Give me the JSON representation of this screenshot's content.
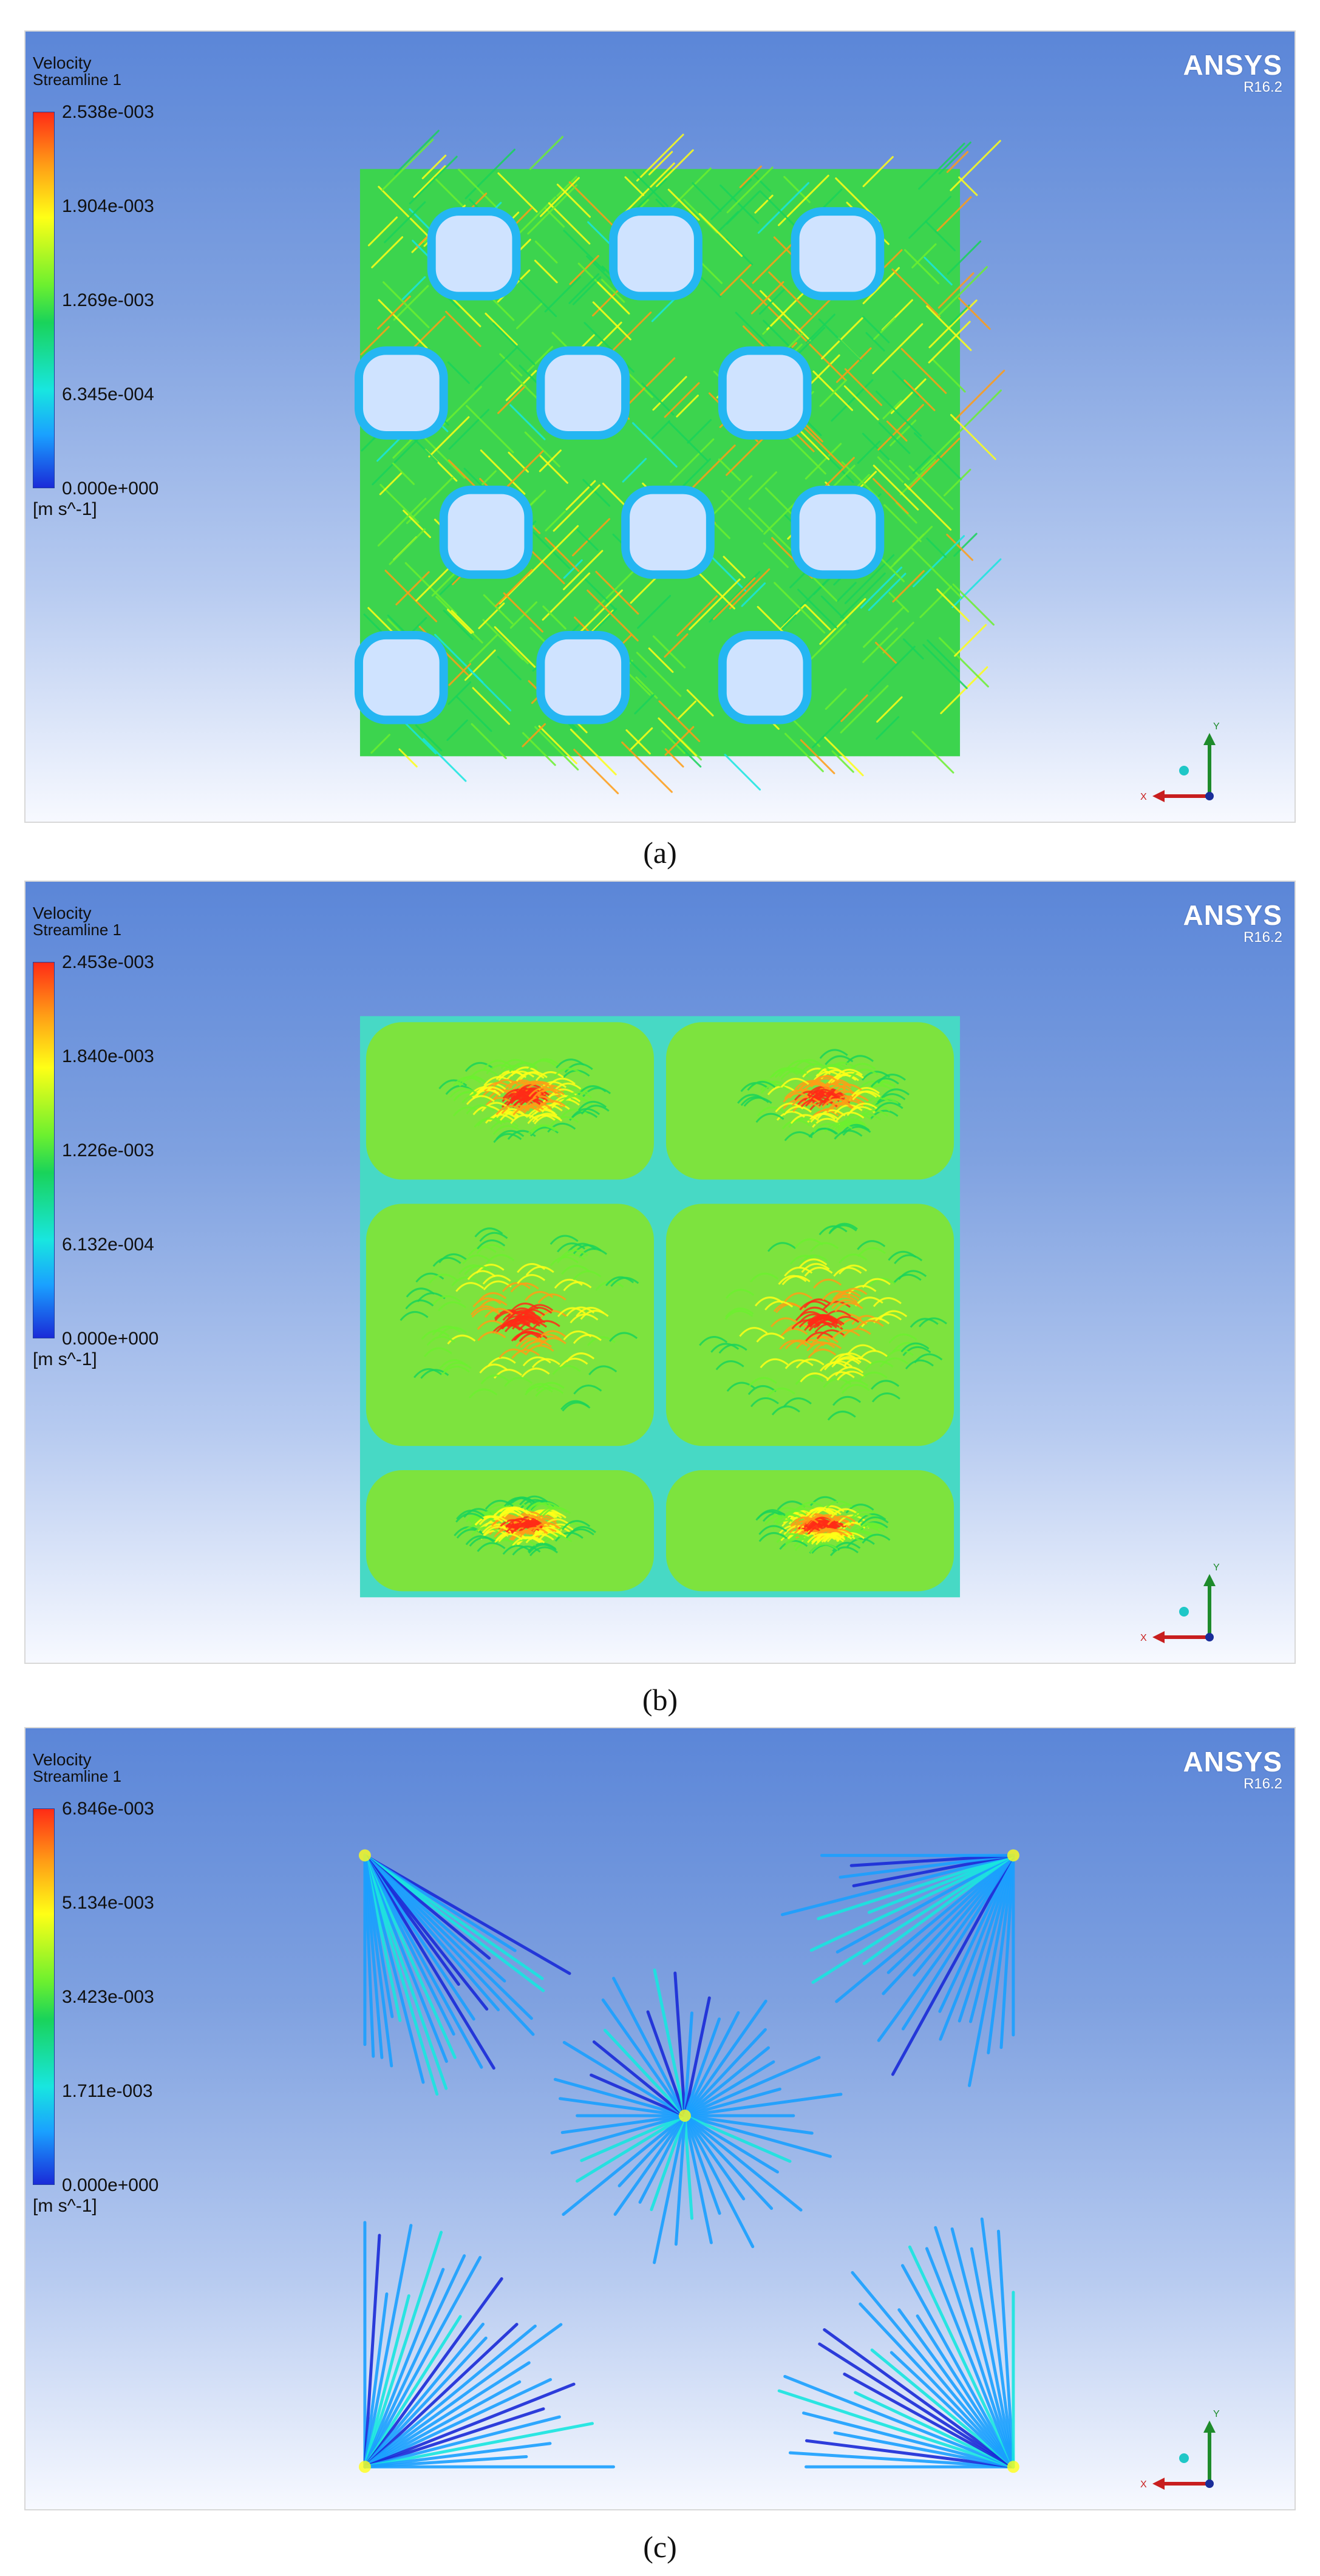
{
  "panels": [
    {
      "id": "a",
      "caption": "(a)",
      "legend": {
        "title": "Velocity",
        "subtitle": "Streamline 1",
        "ticks": [
          "2.538e-003",
          "1.904e-003",
          "1.269e-003",
          "6.345e-004",
          "0.000e+000"
        ],
        "unit": "[m s^-1]",
        "max_value": 0.002538
      },
      "brand": {
        "name": "ANSYS",
        "version": "R16.2"
      },
      "axis_labels": {
        "x": "X",
        "y": "Y"
      },
      "pattern": "diagonal-lattice"
    },
    {
      "id": "b",
      "caption": "(b)",
      "legend": {
        "title": "Velocity",
        "subtitle": "Streamline 1",
        "ticks": [
          "2.453e-003",
          "1.840e-003",
          "1.226e-003",
          "6.132e-004",
          "0.000e+000"
        ],
        "unit": "[m s^-1]",
        "max_value": 0.002453
      },
      "brand": {
        "name": "ANSYS",
        "version": "R16.2"
      },
      "axis_labels": {
        "x": "X",
        "y": "Y"
      },
      "pattern": "square-cells"
    },
    {
      "id": "c",
      "caption": "(c)",
      "legend": {
        "title": "Velocity",
        "subtitle": "Streamline 1",
        "ticks": [
          "6.846e-003",
          "5.134e-003",
          "3.423e-003",
          "1.711e-003",
          "0.000e+000"
        ],
        "unit": "[m s^-1]",
        "max_value": 0.006846
      },
      "brand": {
        "name": "ANSYS",
        "version": "R16.2"
      },
      "axis_labels": {
        "x": "X",
        "y": "Y"
      },
      "pattern": "radial-fans"
    }
  ],
  "colormap": [
    "#1a2bd8",
    "#1aa0ff",
    "#18e6e0",
    "#19d35a",
    "#6cf02f",
    "#ffff16",
    "#ff9d16",
    "#ff2b16"
  ]
}
